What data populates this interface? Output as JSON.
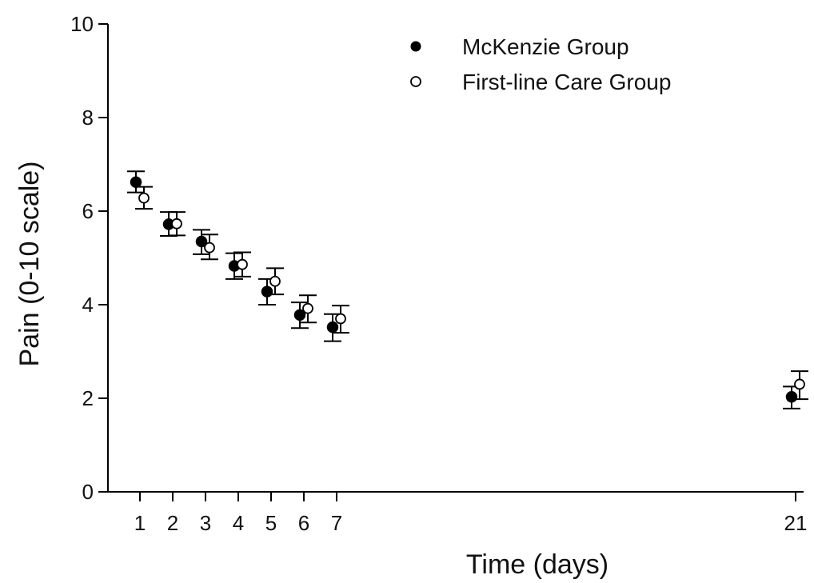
{
  "chart_data": {
    "type": "scatter",
    "title": "",
    "xlabel": "Time (days)",
    "ylabel": "Pain (0-10 scale)",
    "ylim": [
      0,
      10
    ],
    "yticks": [
      0,
      2,
      4,
      6,
      8,
      10
    ],
    "xticks": [
      1,
      2,
      3,
      4,
      5,
      6,
      7,
      21
    ],
    "grid": false,
    "legend_position": "top-right",
    "series": [
      {
        "name": "McKenzie Group",
        "marker": "filled-circle",
        "color": "#000000",
        "x": [
          1,
          2,
          3,
          4,
          5,
          6,
          7,
          21
        ],
        "y": [
          6.62,
          5.72,
          5.35,
          4.83,
          4.28,
          3.78,
          3.52,
          2.03
        ],
        "err_low": [
          6.4,
          5.47,
          5.08,
          4.55,
          4.0,
          3.5,
          3.22,
          1.78
        ],
        "err_high": [
          6.85,
          5.98,
          5.6,
          5.1,
          4.55,
          4.05,
          3.8,
          2.25
        ]
      },
      {
        "name": "First-line Care Group",
        "marker": "open-circle",
        "color": "#000000",
        "x": [
          1,
          2,
          3,
          4,
          5,
          6,
          7,
          21
        ],
        "y": [
          6.28,
          5.73,
          5.22,
          4.86,
          4.5,
          3.92,
          3.7,
          2.3
        ],
        "err_low": [
          6.05,
          5.48,
          4.97,
          4.6,
          4.22,
          3.62,
          3.4,
          1.98
        ],
        "err_high": [
          6.52,
          5.98,
          5.5,
          5.12,
          4.78,
          4.2,
          3.98,
          2.58
        ]
      }
    ]
  }
}
